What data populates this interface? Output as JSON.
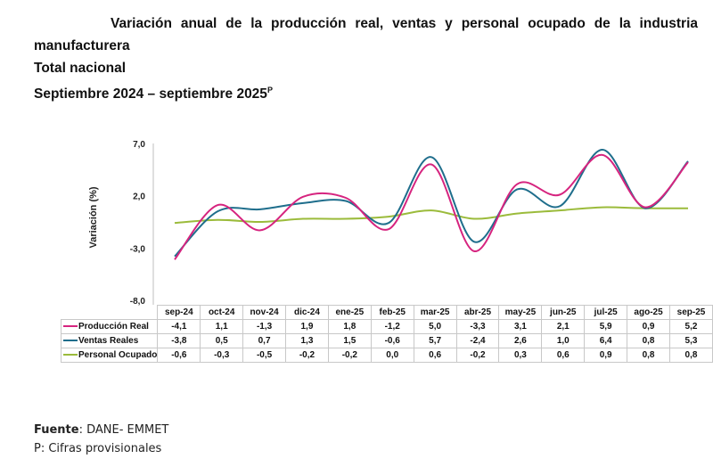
{
  "title": {
    "line1": "Variación anual de la producción real, ventas y personal ocupado de la industria",
    "line2": "manufacturera",
    "line3": "Total nacional",
    "line4": "Septiembre 2024 – septiembre 2025",
    "line4_sup": "P"
  },
  "footer": {
    "source_label": "Fuente",
    "source_value": ": DANE- EMMET",
    "note": "P: Cifras provisionales"
  },
  "chart_data": {
    "type": "line",
    "title": "Variación anual de la producción real, ventas y personal ocupado de la industria manufacturera — Total nacional — Septiembre 2024 – septiembre 2025P",
    "xlabel": "",
    "ylabel": "Variación  (%)",
    "ylim": [
      -8.0,
      7.0
    ],
    "yticks": [
      "7,0",
      "2,0",
      "-3,0",
      "-8,0"
    ],
    "ytick_values": [
      7.0,
      2.0,
      -3.0,
      -8.0
    ],
    "grid": false,
    "legend": "data-table-left",
    "categories": [
      "sep-24",
      "oct-24",
      "nov-24",
      "dic-24",
      "ene-25",
      "feb-25",
      "mar-25",
      "abr-25",
      "may-25",
      "jun-25",
      "jul-25",
      "ago-25",
      "sep-25"
    ],
    "series": [
      {
        "name": "Producción Real",
        "color": "#d6247f",
        "values": [
          -4.1,
          1.1,
          -1.3,
          1.9,
          1.8,
          -1.2,
          5.0,
          -3.3,
          3.1,
          2.1,
          5.9,
          0.9,
          5.2
        ],
        "labels": [
          "-4,1",
          "1,1",
          "-1,3",
          "1,9",
          "1,8",
          "-1,2",
          "5,0",
          "-3,3",
          "3,1",
          "2,1",
          "5,9",
          "0,9",
          "5,2"
        ]
      },
      {
        "name": "Ventas Reales",
        "color": "#1f6e8c",
        "values": [
          -3.8,
          0.5,
          0.7,
          1.3,
          1.5,
          -0.6,
          5.7,
          -2.4,
          2.6,
          1.0,
          6.4,
          0.8,
          5.3
        ],
        "labels": [
          "-3,8",
          "0,5",
          "0,7",
          "1,3",
          "1,5",
          "-0,6",
          "5,7",
          "-2,4",
          "2,6",
          "1,0",
          "6,4",
          "0,8",
          "5,3"
        ]
      },
      {
        "name": "Personal Ocupado",
        "color": "#9bbb3b",
        "values": [
          -0.6,
          -0.3,
          -0.5,
          -0.2,
          -0.2,
          0.0,
          0.6,
          -0.2,
          0.3,
          0.6,
          0.9,
          0.8,
          0.8
        ],
        "labels": [
          "-0,6",
          "-0,3",
          "-0,5",
          "-0,2",
          "-0,2",
          "0,0",
          "0,6",
          "-0,2",
          "0,3",
          "0,6",
          "0,9",
          "0,8",
          "0,8"
        ]
      }
    ]
  }
}
